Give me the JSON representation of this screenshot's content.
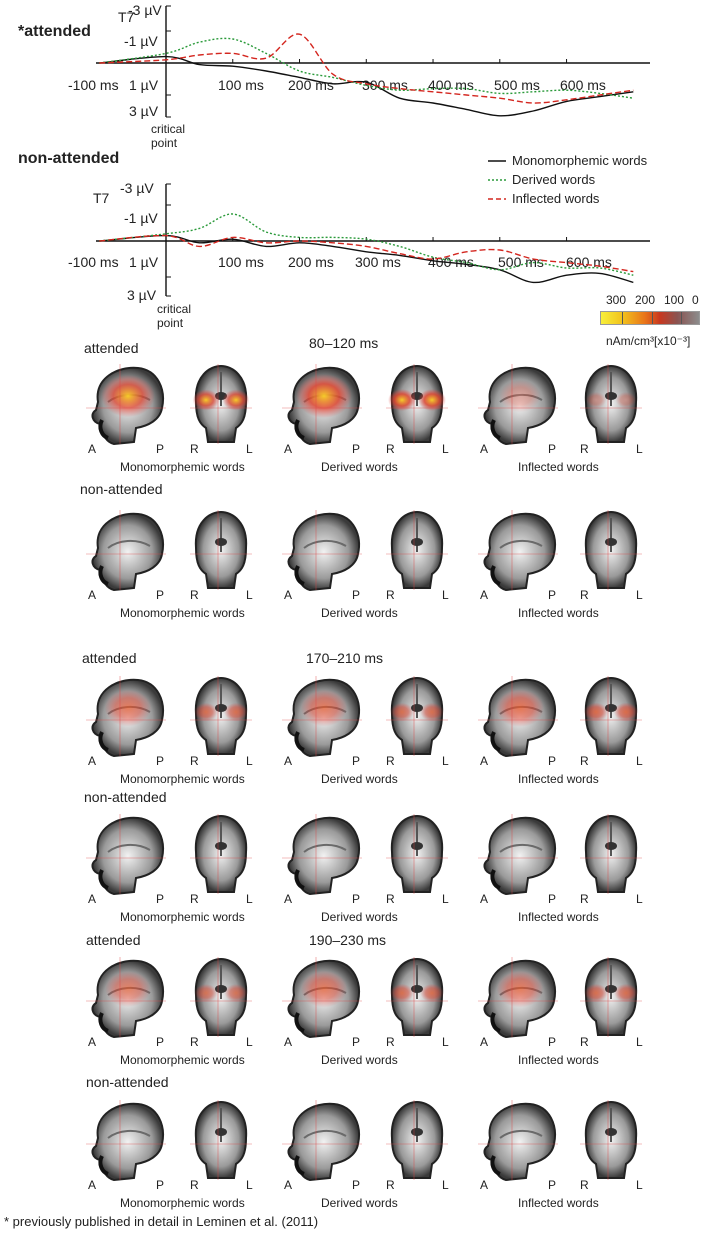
{
  "panels": [
    {
      "condition": "*attended",
      "channel": "T7",
      "yticks": [
        "-3 µV",
        "-1 µV",
        "1 µV",
        "3 µV"
      ],
      "xticks": [
        "-100 ms",
        "100 ms",
        "200 ms",
        "300 ms",
        "400 ms",
        "500 ms",
        "600 ms"
      ],
      "point_label": "critical point"
    },
    {
      "condition": "non-attended",
      "channel": "T7",
      "yticks": [
        "-3 µV",
        "-1 µV",
        "1 µV",
        "3 µV"
      ],
      "xticks": [
        "-100 ms",
        "100 ms",
        "200 ms",
        "300 ms",
        "400 ms",
        "500 ms",
        "600 ms"
      ],
      "point_label": "critical point"
    }
  ],
  "legend": [
    {
      "label": "Monomorphemic words",
      "color": "#111111",
      "style": "solid"
    },
    {
      "label": "Derived words",
      "color": "#2a9a3a",
      "style": "dotted"
    },
    {
      "label": "Inflected words",
      "color": "#d4261f",
      "style": "dashed"
    }
  ],
  "colorbar": {
    "ticks": [
      "300",
      "200",
      "100",
      "0"
    ],
    "unit": "nAm/cm³[x10⁻³]"
  },
  "windows": [
    {
      "time": "80–120 ms",
      "rows": [
        {
          "label": "attended",
          "activation": [
            0.9,
            1.0,
            0.35
          ]
        },
        {
          "label": "non-attended",
          "activation": [
            0.05,
            0.05,
            0.05
          ]
        }
      ]
    },
    {
      "time": "170–210 ms",
      "rows": [
        {
          "label": "attended",
          "activation": [
            0.6,
            0.6,
            0.65
          ]
        },
        {
          "label": "non-attended",
          "activation": [
            0.05,
            0.05,
            0.05
          ]
        }
      ]
    },
    {
      "time": "190–230 ms",
      "rows": [
        {
          "label": "attended",
          "activation": [
            0.55,
            0.6,
            0.6
          ]
        },
        {
          "label": "non-attended",
          "activation": [
            0.05,
            0.05,
            0.05
          ]
        }
      ]
    }
  ],
  "word_types": [
    "Monomorphemic words",
    "Derived words",
    "Inflected words"
  ],
  "view_labels": {
    "sag_a": "A",
    "sag_p": "P",
    "cor_r": "R",
    "cor_l": "L"
  },
  "footnote": "* previously published in detail in Leminen et al. (2011)",
  "chart_data": [
    {
      "type": "line",
      "title": "*attended",
      "ylabel": "T7",
      "xlim": [
        -100,
        700
      ],
      "ylim": [
        -3,
        3
      ],
      "y_inverted": true,
      "x": [
        -100,
        0,
        50,
        100,
        150,
        200,
        250,
        300,
        350,
        400,
        450,
        500,
        550,
        600,
        650,
        700
      ],
      "series": [
        {
          "name": "Monomorphemic words",
          "values": [
            0.0,
            -0.4,
            0.1,
            0.2,
            0.5,
            0.9,
            1.3,
            1.2,
            2.2,
            2.5,
            2.9,
            3.3,
            3.0,
            2.4,
            2.1,
            1.8
          ]
        },
        {
          "name": "Derived words",
          "values": [
            0.0,
            -0.6,
            -1.3,
            -1.5,
            -0.6,
            0.5,
            0.9,
            1.4,
            1.7,
            1.6,
            1.6,
            1.9,
            1.8,
            1.7,
            1.9,
            2.2
          ]
        },
        {
          "name": "Inflected words",
          "values": [
            0.0,
            -0.2,
            -0.5,
            -0.6,
            -0.3,
            -1.8,
            0.7,
            1.3,
            1.6,
            1.8,
            2.0,
            2.2,
            2.5,
            2.3,
            2.0,
            1.7
          ]
        }
      ]
    },
    {
      "type": "line",
      "title": "non-attended",
      "ylabel": "T7",
      "xlim": [
        -100,
        700
      ],
      "ylim": [
        -3,
        3
      ],
      "y_inverted": true,
      "x": [
        -100,
        0,
        50,
        100,
        150,
        200,
        250,
        300,
        350,
        400,
        450,
        500,
        550,
        600,
        650,
        700
      ],
      "series": [
        {
          "name": "Monomorphemic words",
          "values": [
            0.0,
            -0.3,
            0.1,
            -0.1,
            0.3,
            0.1,
            0.3,
            0.6,
            0.8,
            1.1,
            1.3,
            1.6,
            2.3,
            1.9,
            1.8,
            2.3
          ]
        },
        {
          "name": "Derived words",
          "values": [
            0.0,
            -0.4,
            -0.7,
            -1.5,
            -0.5,
            -0.2,
            -0.2,
            -0.1,
            0.3,
            0.9,
            1.2,
            1.6,
            1.2,
            1.5,
            1.5,
            1.9
          ]
        },
        {
          "name": "Inflected words",
          "values": [
            0.0,
            -0.3,
            0.3,
            -0.2,
            0.1,
            0.0,
            0.1,
            0.3,
            0.7,
            1.0,
            0.6,
            0.5,
            1.0,
            1.2,
            1.4,
            1.7
          ]
        }
      ]
    }
  ]
}
